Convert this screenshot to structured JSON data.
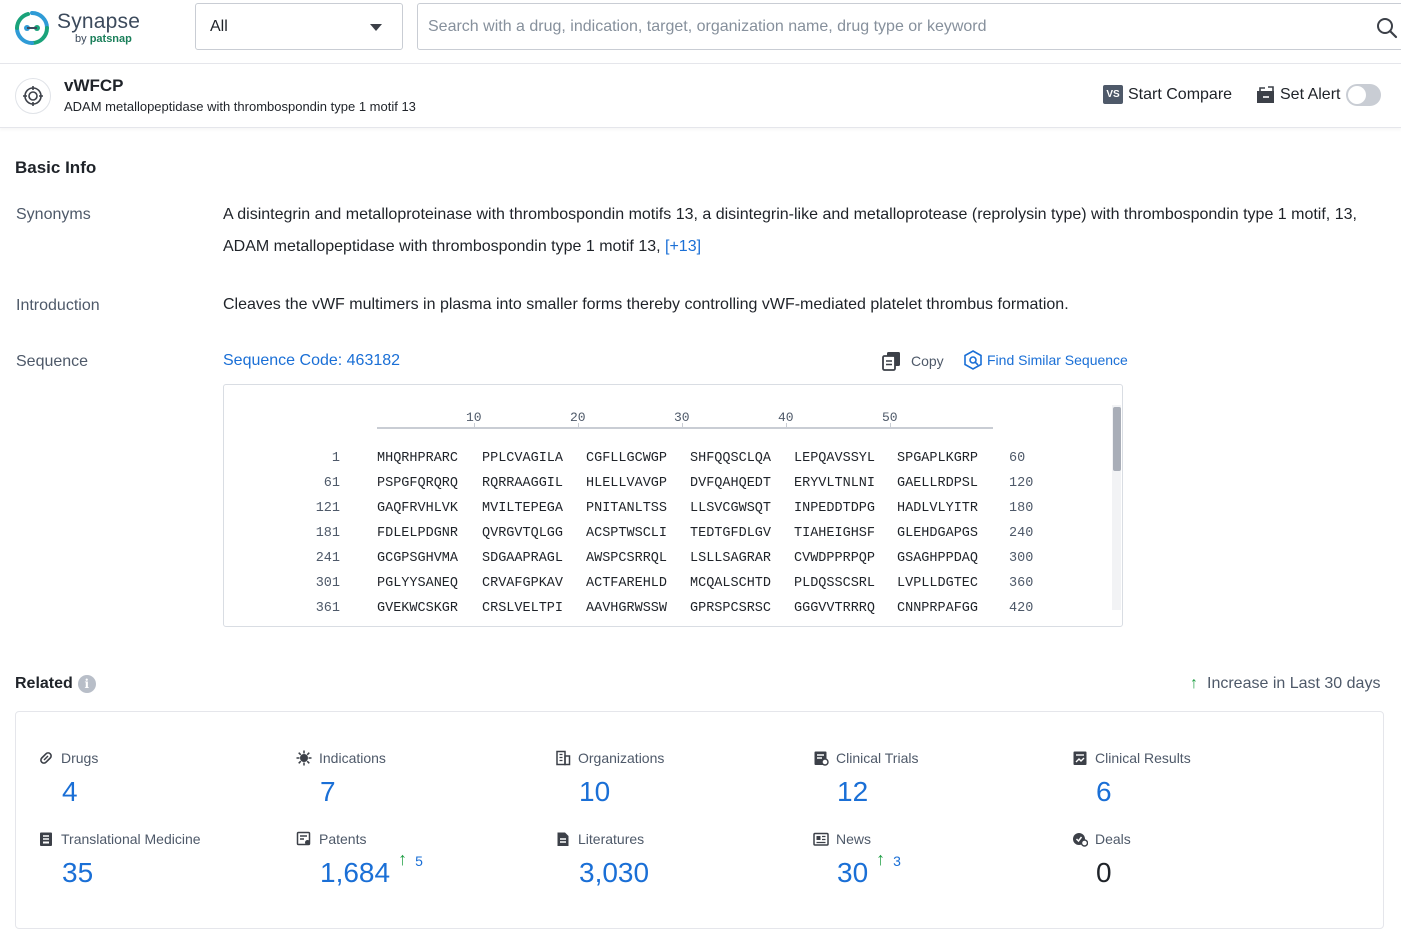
{
  "app": {
    "name": "Synapse",
    "by": "by",
    "vendor": "patsnap"
  },
  "search": {
    "scope": "All",
    "placeholder": "Search with a drug, indication, target, organization name, drug type or keyword"
  },
  "target": {
    "name": "vWFCP",
    "full_name": "ADAM metallopeptidase with thrombospondin type 1 motif 13",
    "compare_label": "Start Compare",
    "vs_badge": "VS",
    "alert_label": "Set Alert",
    "alert_on": false
  },
  "basic_info": {
    "title": "Basic Info",
    "synonyms_label": "Synonyms",
    "synonyms_text": "A disintegrin and metalloproteinase with thrombospondin motifs 13,  a disintegrin-like and metalloprotease (reprolysin type) with thrombospondin type 1 motif, 13,  ADAM metallopeptidase with thrombospondin type 1 motif 13, ",
    "synonyms_more": "[+13]",
    "introduction_label": "Introduction",
    "introduction_text": "Cleaves the vWF multimers in plasma into smaller forms thereby controlling vWF-mediated platelet thrombus formation.",
    "sequence_label": "Sequence",
    "sequence_code": "Sequence Code: 463182",
    "copy_label": "Copy",
    "find_similar_label": "Find Similar Sequence"
  },
  "sequence": {
    "ruler": [
      "10",
      "20",
      "30",
      "40",
      "50"
    ],
    "rows": [
      {
        "start": "1",
        "chunks": [
          "MHQRHPRARC",
          "PPLCVAGILA",
          "CGFLLGCWGP",
          "SHFQQSCLQA",
          "LEPQAVSSYL",
          "SPGAPLKGRP"
        ],
        "end": "60"
      },
      {
        "start": "61",
        "chunks": [
          "PSPGFQRQRQ",
          "RQRRAAGGIL",
          "HLELLVAVGP",
          "DVFQAHQEDT",
          "ERYVLTNLNI",
          "GAELLRDPSL"
        ],
        "end": "120"
      },
      {
        "start": "121",
        "chunks": [
          "GAQFRVHLVK",
          "MVILTEPEGA",
          "PNITANLTSS",
          "LLSVCGWSQT",
          "INPEDDTDPG",
          "HADLVLYITR"
        ],
        "end": "180"
      },
      {
        "start": "181",
        "chunks": [
          "FDLELPDGNR",
          "QVRGVTQLGG",
          "ACSPTWSCLI",
          "TEDTGFDLGV",
          "TIAHEIGHSF",
          "GLEHDGAPGS"
        ],
        "end": "240"
      },
      {
        "start": "241",
        "chunks": [
          "GCGPSGHVMA",
          "SDGAAPRAGL",
          "AWSPCSRRQL",
          "LSLLSAGRAR",
          "CVWDPPRPQP",
          "GSAGHPPDAQ"
        ],
        "end": "300"
      },
      {
        "start": "301",
        "chunks": [
          "PGLYYSANEQ",
          "CRVAFGPKAV",
          "ACTFAREHLD",
          "MCQALSCHTD",
          "PLDQSSCSRL",
          "LVPLLDGTEC"
        ],
        "end": "360"
      },
      {
        "start": "361",
        "chunks": [
          "GVEKWCSKGR",
          "CRSLVELTPI",
          "AAVHGRWSSW",
          "GPRSPCSRSC",
          "GGGVVTRRRQ",
          "CNNPRPAFGG"
        ],
        "end": "420"
      }
    ]
  },
  "related": {
    "title": "Related",
    "info_glyph": "i",
    "increase_note": "Increase in Last 30 days",
    "stats": [
      {
        "label": "Drugs",
        "value": "4",
        "icon": "pill-icon"
      },
      {
        "label": "Indications",
        "value": "7",
        "icon": "virus-icon"
      },
      {
        "label": "Organizations",
        "value": "10",
        "icon": "building-icon"
      },
      {
        "label": "Clinical Trials",
        "value": "12",
        "icon": "clipboard-icon"
      },
      {
        "label": "Clinical Results",
        "value": "6",
        "icon": "report-icon"
      },
      {
        "label": "Translational Medicine",
        "value": "35",
        "icon": "book-icon"
      },
      {
        "label": "Patents",
        "value": "1,684",
        "increase": "5",
        "icon": "patent-icon"
      },
      {
        "label": "Literatures",
        "value": "3,030",
        "icon": "document-icon"
      },
      {
        "label": "News",
        "value": "30",
        "increase": "3",
        "icon": "newspaper-icon"
      },
      {
        "label": "Deals",
        "value": "0",
        "icon": "deal-icon"
      }
    ]
  },
  "colors": {
    "link": "#1a6fd6",
    "increase": "#23a047",
    "text": "#1f2329",
    "muted": "#4e5969"
  }
}
